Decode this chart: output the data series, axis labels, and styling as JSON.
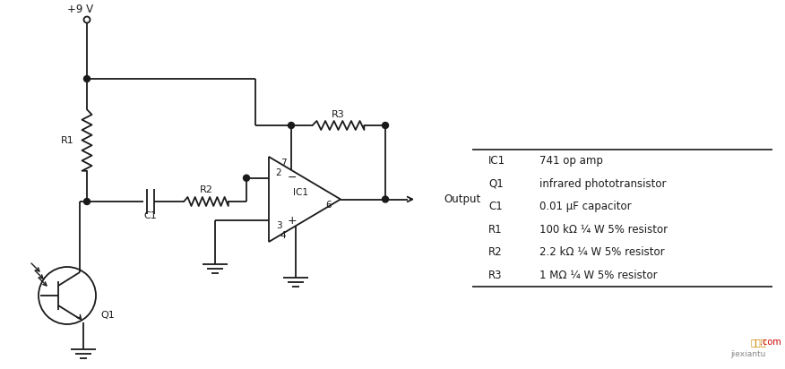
{
  "bg_color": "#ffffff",
  "line_color": "#1a1a1a",
  "fig_width": 8.76,
  "fig_height": 4.12,
  "components": {
    "IC1": "741 op amp",
    "Q1": "infrared phototransistor",
    "C1": "0.01 μF capacitor",
    "R1": "100 kΩ ¼ W 5% resistor",
    "R2": "2.2 kΩ ¼ W 5% resistor",
    "R3": "1 MΩ ¼ W 5% resistor"
  }
}
